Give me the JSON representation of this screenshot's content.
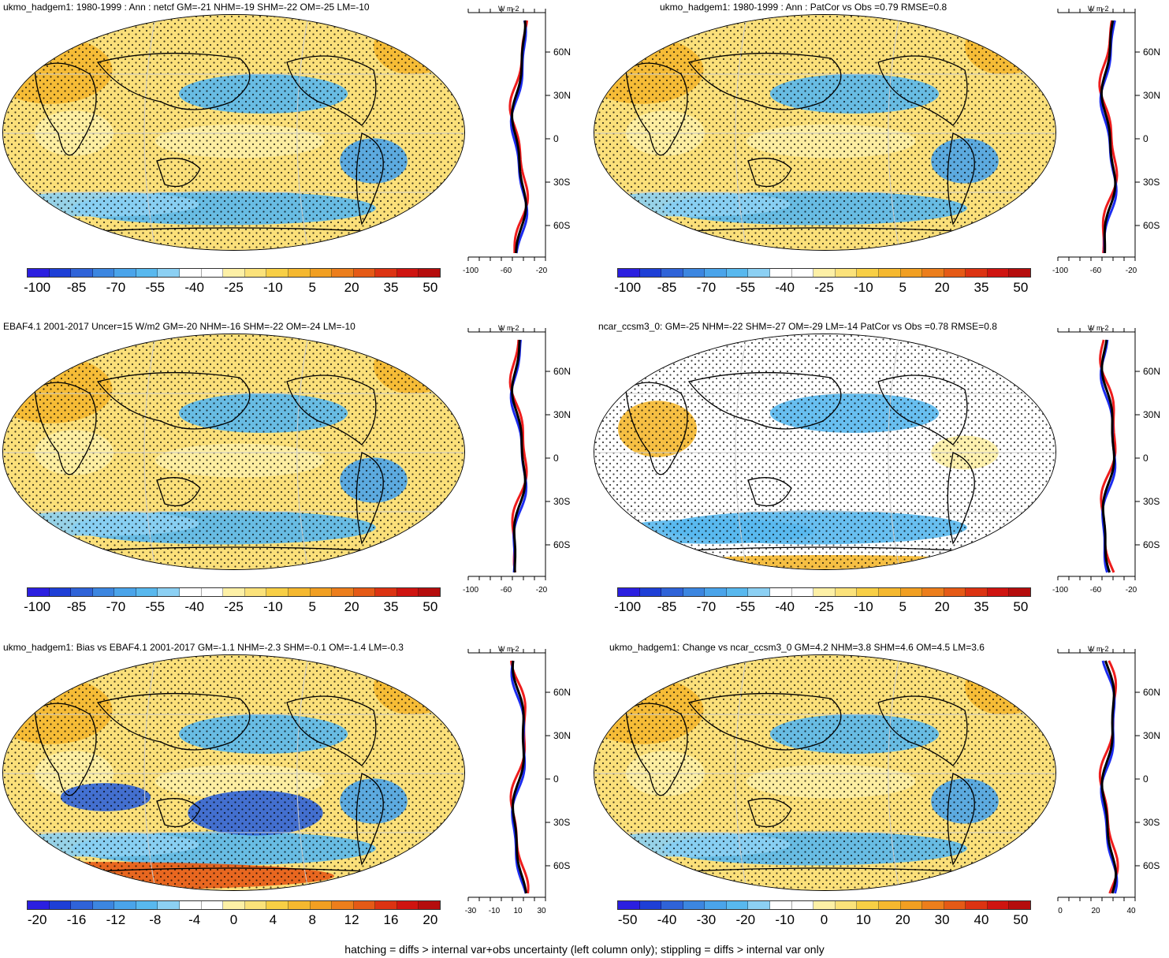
{
  "panels": [
    {
      "title": "ukmo_hadgem1: 1980-1999 : Ann : netcf GM=-21 NHM=-19 SHM=-22 OM=-25 LM=-10",
      "colorbar_labels": [
        "-100",
        "-85",
        "-70",
        "-55",
        "-40",
        "-25",
        "-10",
        "5",
        "20",
        "35",
        "50"
      ],
      "colorbar_colors": [
        "#2b1fe0",
        "#1e3fd6",
        "#2f63d8",
        "#3c86e0",
        "#4aa4ea",
        "#58b8ee",
        "#8cd0f3",
        "#ffffff",
        "#ffffff",
        "#fdf0a6",
        "#fbe27a",
        "#f8cf45",
        "#f5b82f",
        "#f19f22",
        "#ec7e1c",
        "#e55a16",
        "#dc3312",
        "#cf1410",
        "#b50d0d"
      ],
      "profile": {
        "unit": "W m-2",
        "lat_ticks": [
          "60N",
          "30N",
          "0",
          "30S",
          "60S"
        ],
        "x_ticks": [
          "-100",
          "-60",
          "-20"
        ]
      },
      "map_tone": "warm"
    },
    {
      "title": "ukmo_hadgem1: 1980-1999 : Ann : PatCor vs Obs =0.79 RMSE=0.8",
      "colorbar_labels": [
        "-100",
        "-85",
        "-70",
        "-55",
        "-40",
        "-25",
        "-10",
        "5",
        "20",
        "35",
        "50"
      ],
      "colorbar_colors": [
        "#2b1fe0",
        "#1e3fd6",
        "#2f63d8",
        "#3c86e0",
        "#4aa4ea",
        "#58b8ee",
        "#8cd0f3",
        "#ffffff",
        "#ffffff",
        "#fdf0a6",
        "#fbe27a",
        "#f8cf45",
        "#f5b82f",
        "#f19f22",
        "#ec7e1c",
        "#e55a16",
        "#dc3312",
        "#cf1410",
        "#b50d0d"
      ],
      "profile": {
        "unit": "W m-2",
        "lat_ticks": [
          "60N",
          "30N",
          "0",
          "30S",
          "60S"
        ],
        "x_ticks": [
          "-100",
          "-60",
          "-20"
        ]
      },
      "map_tone": "warm"
    },
    {
      "title": "EBAF4.1 2001-2017 Uncer=15 W/m2 GM=-20 NHM=-16 SHM=-22 OM=-24 LM=-10",
      "colorbar_labels": [
        "-100",
        "-85",
        "-70",
        "-55",
        "-40",
        "-25",
        "-10",
        "5",
        "20",
        "35",
        "50"
      ],
      "colorbar_colors": [
        "#2b1fe0",
        "#1e3fd6",
        "#2f63d8",
        "#3c86e0",
        "#4aa4ea",
        "#58b8ee",
        "#8cd0f3",
        "#ffffff",
        "#ffffff",
        "#fdf0a6",
        "#fbe27a",
        "#f8cf45",
        "#f5b82f",
        "#f19f22",
        "#ec7e1c",
        "#e55a16",
        "#dc3312",
        "#cf1410",
        "#b50d0d"
      ],
      "profile": {
        "unit": "W m-2",
        "lat_ticks": [
          "60N",
          "30N",
          "0",
          "30S",
          "60S"
        ],
        "x_ticks": [
          "-100",
          "-60",
          "-20"
        ]
      },
      "map_tone": "warm"
    },
    {
      "title": "ncar_ccsm3_0: GM=-25 NHM=-22 SHM=-27 OM=-29 LM=-14 PatCor vs Obs =0.78 RMSE=0.8",
      "colorbar_labels": [
        "-100",
        "-85",
        "-70",
        "-55",
        "-40",
        "-25",
        "-10",
        "5",
        "20",
        "35",
        "50"
      ],
      "colorbar_colors": [
        "#2b1fe0",
        "#1e3fd6",
        "#2f63d8",
        "#3c86e0",
        "#4aa4ea",
        "#58b8ee",
        "#8cd0f3",
        "#ffffff",
        "#ffffff",
        "#fdf0a6",
        "#fbe27a",
        "#f8cf45",
        "#f5b82f",
        "#f19f22",
        "#ec7e1c",
        "#e55a16",
        "#dc3312",
        "#cf1410",
        "#b50d0d"
      ],
      "profile": {
        "unit": "W m-2",
        "lat_ticks": [
          "60N",
          "30N",
          "0",
          "30S",
          "60S"
        ],
        "x_ticks": [
          "-100",
          "-60",
          "-20"
        ]
      },
      "map_tone": "mixed"
    },
    {
      "title": "ukmo_hadgem1: Bias vs EBAF4.1 2001-2017 GM=-1.1 NHM=-2.3 SHM=-0.1 OM=-1.4 LM=-0.3",
      "colorbar_labels": [
        "-20",
        "-16",
        "-12",
        "-8",
        "-4",
        "0",
        "4",
        "8",
        "12",
        "16",
        "20"
      ],
      "colorbar_colors": [
        "#2b1fe0",
        "#1e3fd6",
        "#2f63d8",
        "#3c86e0",
        "#4aa4ea",
        "#58b8ee",
        "#8cd0f3",
        "#ffffff",
        "#ffffff",
        "#fdf0a6",
        "#fbe27a",
        "#f8cf45",
        "#f5b82f",
        "#f19f22",
        "#ec7e1c",
        "#e55a16",
        "#dc3312",
        "#cf1410",
        "#b50d0d"
      ],
      "profile": {
        "unit": "W m-2",
        "lat_ticks": [
          "60N",
          "30N",
          "0",
          "30S",
          "60S"
        ],
        "x_ticks": [
          "-30",
          "-10",
          "10",
          "30"
        ]
      },
      "map_tone": "bias"
    },
    {
      "title": "ukmo_hadgem1: Change vs ncar_ccsm3_0 GM=4.2 NHM=3.8 SHM=4.6 OM=4.5 LM=3.6",
      "colorbar_labels": [
        "-50",
        "-40",
        "-30",
        "-20",
        "-10",
        "0",
        "10",
        "20",
        "30",
        "40",
        "50"
      ],
      "colorbar_colors": [
        "#2b1fe0",
        "#1e3fd6",
        "#2f63d8",
        "#3c86e0",
        "#4aa4ea",
        "#58b8ee",
        "#8cd0f3",
        "#ffffff",
        "#ffffff",
        "#fdf0a6",
        "#fbe27a",
        "#f8cf45",
        "#f5b82f",
        "#f19f22",
        "#ec7e1c",
        "#e55a16",
        "#dc3312",
        "#cf1410",
        "#b50d0d"
      ],
      "profile": {
        "unit": "W m-2",
        "lat_ticks": [
          "60N",
          "30N",
          "0",
          "30S",
          "60S"
        ],
        "x_ticks": [
          "0",
          "20",
          "40"
        ]
      },
      "map_tone": "warm"
    }
  ],
  "footnote": "hatching = diffs > internal var+obs uncertainty (left column only); stippling = diffs > internal var only"
}
